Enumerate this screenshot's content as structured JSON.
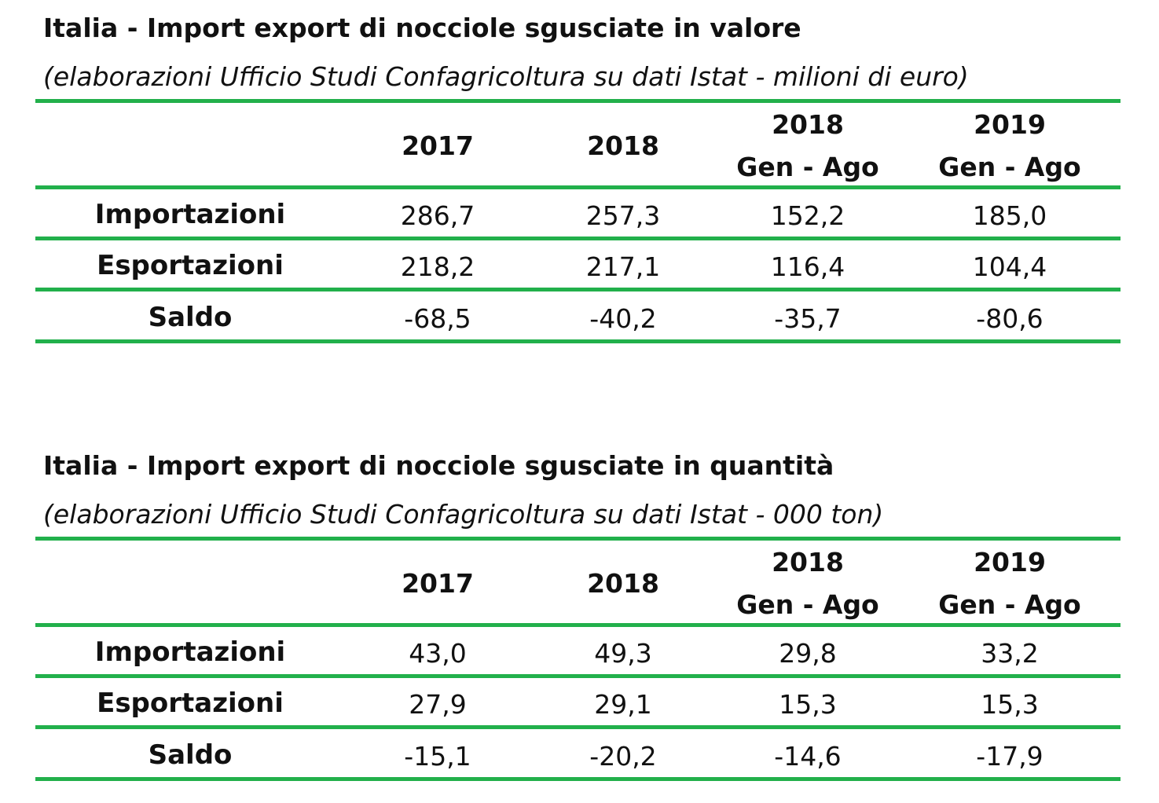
{
  "colors": {
    "rule": "#22b04b",
    "text": "#111111",
    "background": "#ffffff"
  },
  "tables": [
    {
      "title": "Italia - Import export di nocciole sgusciate in valore",
      "subtitle": "(elaborazioni Ufficio Studi Confagricoltura su dati Istat - milioni di euro)",
      "columns": [
        {
          "line1": "",
          "line2": "2017"
        },
        {
          "line1": "",
          "line2": "2018"
        },
        {
          "line1": "2018",
          "line2": "Gen - Ago"
        },
        {
          "line1": "2019",
          "line2": "Gen - Ago"
        }
      ],
      "rows": [
        {
          "label": "Importazioni",
          "values": [
            "286,7",
            "257,3",
            "152,2",
            "185,0"
          ]
        },
        {
          "label": "Esportazioni",
          "values": [
            "218,2",
            "217,1",
            "116,4",
            "104,4"
          ]
        },
        {
          "label": "Saldo",
          "values": [
            "-68,5",
            "-40,2",
            "-35,7",
            "-80,6"
          ]
        }
      ]
    },
    {
      "title": "Italia - Import export di nocciole sgusciate in quantità",
      "subtitle": "(elaborazioni Ufficio Studi Confagricoltura su dati Istat - 000 ton)",
      "columns": [
        {
          "line1": "",
          "line2": "2017"
        },
        {
          "line1": "",
          "line2": "2018"
        },
        {
          "line1": "2018",
          "line2": "Gen - Ago"
        },
        {
          "line1": "2019",
          "line2": "Gen - Ago"
        }
      ],
      "rows": [
        {
          "label": "Importazioni",
          "values": [
            "43,0",
            "49,3",
            "29,8",
            "33,2"
          ]
        },
        {
          "label": "Esportazioni",
          "values": [
            "27,9",
            "29,1",
            "15,3",
            "15,3"
          ]
        },
        {
          "label": "Saldo",
          "values": [
            "-15,1",
            "-20,2",
            "-14,6",
            "-17,9"
          ]
        }
      ]
    }
  ]
}
